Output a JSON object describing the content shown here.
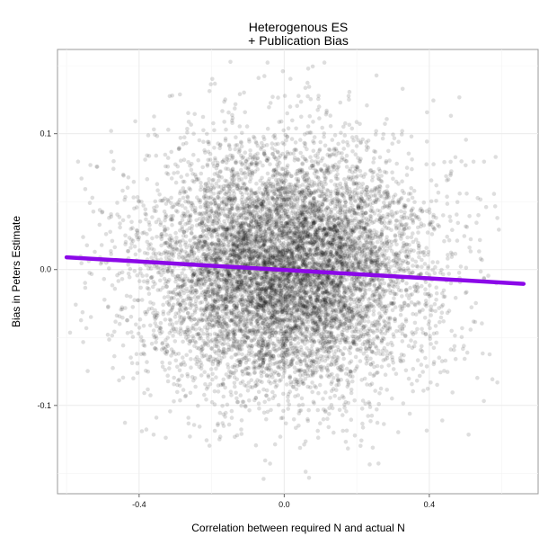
{
  "chart_data": {
    "type": "scatter",
    "title": [
      "Heterogenous ES",
      "+ Publication Bias"
    ],
    "xlabel": "Correlation between required N and actual N",
    "ylabel": "Bias in Peters Estimate",
    "xlim": [
      -0.625,
      0.7
    ],
    "ylim": [
      -0.165,
      0.162
    ],
    "xticks": [
      -0.4,
      0.0,
      0.4
    ],
    "xtick_labels": [
      "-0.4",
      "0.0",
      "0.4"
    ],
    "yticks": [
      -0.1,
      0.0,
      0.1
    ],
    "ytick_labels": [
      "-0.1",
      "0.0",
      "0.1"
    ],
    "grid": true,
    "point_color": "#000000",
    "point_alpha": 0.13,
    "scatter_summary": {
      "n_points_approx": 9000,
      "x_center": 0.0,
      "x_sd": 0.19,
      "y_center": 0.0,
      "y_sd": 0.045,
      "x_range": [
        -0.6,
        0.6
      ],
      "y_range": [
        -0.155,
        0.155
      ]
    },
    "series": [
      {
        "type": "line",
        "x": [
          -0.6,
          0.66
        ],
        "y": [
          0.009,
          -0.0105
        ],
        "color": "#8b08e8"
      }
    ]
  }
}
